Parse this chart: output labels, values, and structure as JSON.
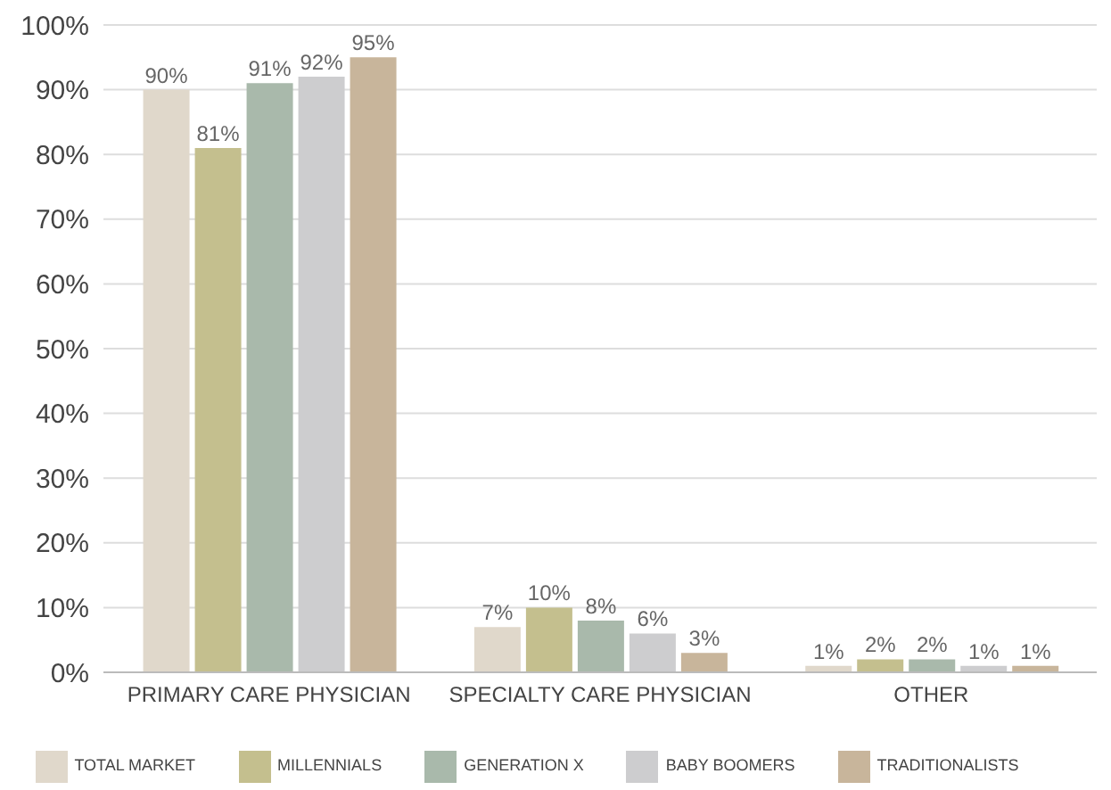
{
  "chart_data": {
    "type": "bar",
    "categories": [
      "PRIMARY CARE PHYSICIAN",
      "SPECIALTY CARE PHYSICIAN",
      "OTHER"
    ],
    "series": [
      {
        "name": "TOTAL MARKET",
        "color": "#e0d8cb",
        "values": [
          90,
          7,
          1
        ],
        "value_labels": [
          "90%",
          "7%",
          "1%"
        ]
      },
      {
        "name": "MILLENNIALS",
        "color": "#c4bf8e",
        "values": [
          81,
          10,
          2
        ],
        "value_labels": [
          "81%",
          "10%",
          "2%"
        ]
      },
      {
        "name": "GENERATION X",
        "color": "#a9b9ab",
        "values": [
          91,
          8,
          2
        ],
        "value_labels": [
          "91%",
          "8%",
          "2%"
        ]
      },
      {
        "name": "BABY BOOMERS",
        "color": "#cdcdcf",
        "values": [
          92,
          6,
          1
        ],
        "value_labels": [
          "92%",
          "6%",
          "1%"
        ]
      },
      {
        "name": "TRADITIONALISTS",
        "color": "#c8b59b",
        "values": [
          95,
          3,
          1
        ],
        "value_labels": [
          "95%",
          "3%",
          "1%"
        ]
      }
    ],
    "ylim": [
      0,
      100
    ],
    "yticks": [
      {
        "value": 0,
        "label": "0%"
      },
      {
        "value": 10,
        "label": "10%"
      },
      {
        "value": 20,
        "label": "20%"
      },
      {
        "value": 30,
        "label": "30%"
      },
      {
        "value": 40,
        "label": "40%"
      },
      {
        "value": 50,
        "label": "50%"
      },
      {
        "value": 60,
        "label": "60%"
      },
      {
        "value": 70,
        "label": "70%"
      },
      {
        "value": 80,
        "label": "80%"
      },
      {
        "value": 90,
        "label": "90%"
      },
      {
        "value": 100,
        "label": "100%"
      }
    ],
    "grid": "y",
    "legend": "bottom"
  }
}
